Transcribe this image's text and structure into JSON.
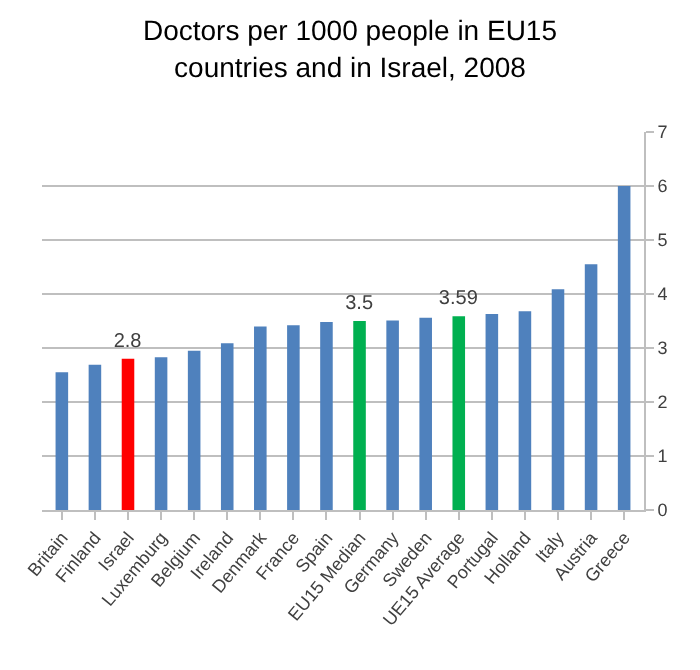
{
  "chart_data": {
    "type": "bar",
    "title": "Doctors per 1000 people in EU15\ncountries and in Israel, 2008",
    "categories": [
      "Britain",
      "Finland",
      "Israel",
      "Luxemburg",
      "Belgium",
      "Ireland",
      "Denmark",
      "France",
      "Spain",
      "EU15 Median",
      "Germany",
      "Sweden",
      "UE15 Average",
      "Portugal",
      "Holland",
      "Italy",
      "Austria",
      "Greece"
    ],
    "values": [
      2.55,
      2.69,
      2.8,
      2.83,
      2.95,
      3.09,
      3.4,
      3.42,
      3.48,
      3.5,
      3.51,
      3.56,
      3.59,
      3.63,
      3.68,
      4.09,
      4.55,
      6.0
    ],
    "colors": [
      "#4f81bd",
      "#4f81bd",
      "#ff0000",
      "#4f81bd",
      "#4f81bd",
      "#4f81bd",
      "#4f81bd",
      "#4f81bd",
      "#4f81bd",
      "#00b050",
      "#4f81bd",
      "#4f81bd",
      "#00b050",
      "#4f81bd",
      "#4f81bd",
      "#4f81bd",
      "#4f81bd",
      "#4f81bd"
    ],
    "value_labels": [
      null,
      null,
      "2.8",
      null,
      null,
      null,
      null,
      null,
      null,
      "3.5",
      null,
      null,
      "3.59",
      null,
      null,
      null,
      null,
      null
    ],
    "ylim": [
      0,
      7
    ],
    "yticks": [
      0,
      1,
      2,
      3,
      4,
      5,
      6,
      7
    ],
    "grid": "y"
  }
}
